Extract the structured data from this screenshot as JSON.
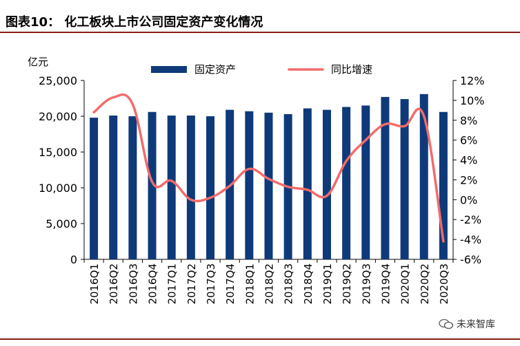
{
  "figure_title": "图表10：   化工板块上市公司固定资产变化情况",
  "watermark": "未来智库",
  "colors": {
    "bar": "#0f3a7a",
    "line": "#f26b6b",
    "rule": "#8b1a12"
  },
  "chart_data": {
    "type": "bar",
    "categories": [
      "2016Q1",
      "2016Q2",
      "2016Q3",
      "2016Q4",
      "2017Q1",
      "2017Q2",
      "2017Q3",
      "2017Q4",
      "2018Q1",
      "2018Q2",
      "2018Q3",
      "2018Q4",
      "2019Q1",
      "2019Q2",
      "2019Q3",
      "2019Q4",
      "2020Q1",
      "2020Q2",
      "2020Q3"
    ],
    "ylabel_left": "亿元",
    "ylim_left": [
      0,
      25000
    ],
    "yticks_left": [
      "0",
      "5,000",
      "10,000",
      "15,000",
      "20,000",
      "25,000"
    ],
    "ylim_right": [
      -6,
      12
    ],
    "yticks_right": [
      "-6%",
      "-4%",
      "-2%",
      "0%",
      "2%",
      "4%",
      "6%",
      "8%",
      "10%",
      "12%"
    ],
    "legend_position": "top",
    "series": [
      {
        "name": "固定资产",
        "type": "bar",
        "axis": "left",
        "values": [
          19800,
          20100,
          20000,
          20600,
          20100,
          20100,
          20000,
          20900,
          20700,
          20500,
          20300,
          21100,
          20900,
          21300,
          21500,
          22700,
          22400,
          23100,
          20600
        ]
      },
      {
        "name": "同比增速",
        "type": "line",
        "axis": "right",
        "values": [
          8.8,
          10.3,
          9.6,
          1.8,
          1.9,
          0.0,
          0.2,
          1.4,
          3.1,
          2.1,
          1.3,
          1.0,
          0.4,
          3.9,
          6.0,
          7.6,
          7.4,
          8.4,
          -4.2
        ]
      }
    ]
  }
}
